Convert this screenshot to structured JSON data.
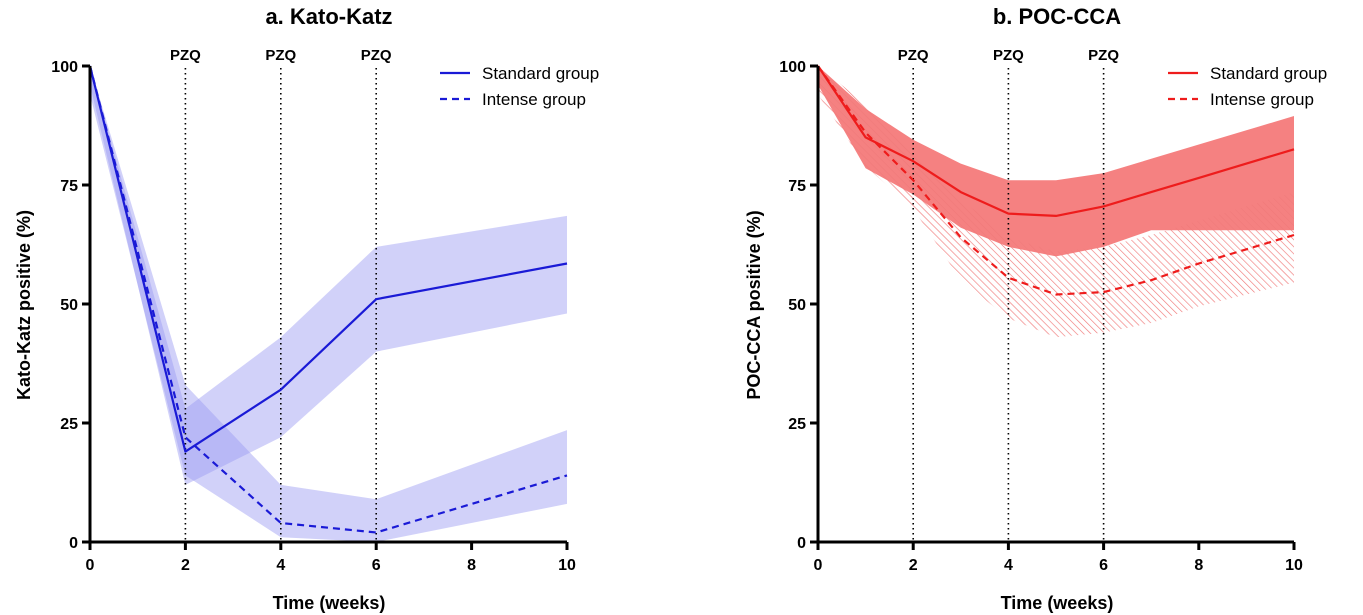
{
  "chart_data": [
    {
      "type": "line",
      "title": "a. Kato-Katz",
      "xlabel": "Time (weeks)",
      "ylabel": "Kato-Katz positive (%)",
      "xlim": [
        0,
        10
      ],
      "ylim": [
        0,
        100
      ],
      "x_ticks": [
        "0",
        "2",
        "4",
        "6",
        "8",
        "10"
      ],
      "y_ticks": [
        "0",
        "25",
        "50",
        "75",
        "100"
      ],
      "grid": false,
      "legend_position": "top-right",
      "color": "#1a1ad6",
      "band_color": "#9a9af2",
      "markers": [
        {
          "x": 2,
          "label": "PZQ"
        },
        {
          "x": 4,
          "label": "PZQ"
        },
        {
          "x": 6,
          "label": "PZQ"
        }
      ],
      "series": [
        {
          "name": "Standard group",
          "style": "solid",
          "x": [
            0,
            2,
            4,
            6,
            10
          ],
          "y": [
            100,
            19,
            32,
            51,
            58.5
          ],
          "lower": [
            96,
            12,
            22,
            40,
            48
          ],
          "upper": [
            100,
            28,
            43,
            62,
            68.5
          ]
        },
        {
          "name": "Intense group",
          "style": "dashed",
          "x": [
            0,
            2,
            4,
            6,
            10
          ],
          "y": [
            100,
            22,
            4,
            2,
            14
          ],
          "lower": [
            94,
            14,
            1,
            0,
            8
          ],
          "upper": [
            100,
            33,
            12,
            9,
            23.5
          ]
        }
      ]
    },
    {
      "type": "line",
      "title": "b. POC-CCA",
      "xlabel": "Time (weeks)",
      "ylabel": "POC-CCA positive (%)",
      "xlim": [
        0,
        10
      ],
      "ylim": [
        0,
        100
      ],
      "x_ticks": [
        "0",
        "2",
        "4",
        "6",
        "8",
        "10"
      ],
      "y_ticks": [
        "0",
        "25",
        "50",
        "75",
        "100"
      ],
      "grid": false,
      "legend_position": "top-right",
      "color": "#ee1c1c",
      "band_color": "#f47a7a",
      "markers": [
        {
          "x": 2,
          "label": "PZQ"
        },
        {
          "x": 4,
          "label": "PZQ"
        },
        {
          "x": 6,
          "label": "PZQ"
        }
      ],
      "series": [
        {
          "name": "Standard group",
          "style": "solid",
          "band": "filled",
          "x": [
            0,
            1,
            2,
            3,
            4,
            5,
            6,
            7,
            8,
            9,
            10
          ],
          "y": [
            100,
            85,
            80,
            73.5,
            69,
            68.5,
            70.5,
            73.5,
            76.5,
            79.5,
            82.5
          ],
          "lower": [
            96,
            78.5,
            73,
            66,
            62,
            60,
            62,
            65.5,
            65.5,
            65.5,
            65.5
          ],
          "upper": [
            100,
            91,
            84.5,
            79.5,
            76,
            76,
            77.5,
            80.5,
            83.5,
            86.5,
            89.5
          ]
        },
        {
          "name": "Intense group",
          "style": "dashed",
          "band": "hatched",
          "x": [
            0,
            1,
            2,
            3,
            4,
            5,
            6,
            7,
            8,
            9,
            10
          ],
          "y": [
            100,
            86,
            76,
            64,
            55.5,
            52,
            52.5,
            55,
            58.5,
            61.5,
            64.5
          ],
          "lower": [
            94,
            79,
            70,
            55,
            47,
            43,
            44,
            46,
            49.5,
            52,
            54.5
          ],
          "upper": [
            100,
            92,
            82,
            72,
            64,
            61,
            62,
            64.5,
            67.5,
            70.5,
            73.5
          ]
        }
      ]
    }
  ]
}
